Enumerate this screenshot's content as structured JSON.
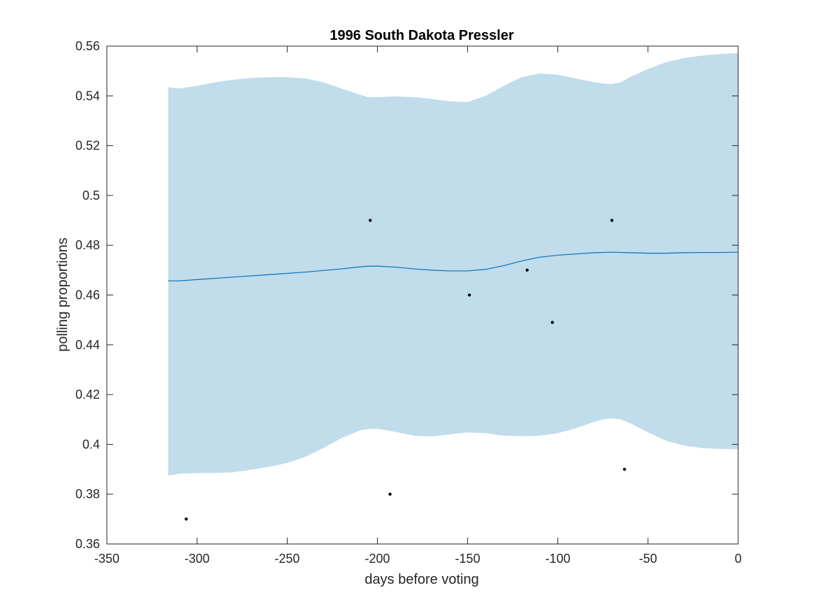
{
  "chart_data": {
    "type": "line",
    "title": "1996 South Dakota Pressler",
    "xlabel": "days before voting",
    "ylabel": "polling proportions",
    "xlim": [
      -350,
      0
    ],
    "ylim": [
      0.36,
      0.56
    ],
    "xticks": [
      -350,
      -300,
      -250,
      -200,
      -150,
      -100,
      -50,
      0
    ],
    "xtick_labels": [
      "-350",
      "-300",
      "-250",
      "-200",
      "-150",
      "-100",
      "-50",
      "0"
    ],
    "yticks": [
      0.36,
      0.38,
      0.4,
      0.42,
      0.44,
      0.46,
      0.48,
      0.5,
      0.52,
      0.54,
      0.56
    ],
    "ytick_labels": [
      "0.36",
      "0.38",
      "0.4",
      "0.42",
      "0.44",
      "0.46",
      "0.48",
      "0.5",
      "0.52",
      "0.54",
      "0.56"
    ],
    "grid": false,
    "colors": {
      "band": "#c1dcea",
      "line": "#0072bd",
      "points": "#000000",
      "axis": "#262626"
    },
    "band": {
      "x": [
        -316,
        -310,
        -300,
        -290,
        -280,
        -270,
        -260,
        -250,
        -240,
        -230,
        -220,
        -210,
        -205,
        -200,
        -190,
        -180,
        -170,
        -160,
        -150,
        -140,
        -130,
        -120,
        -110,
        -100,
        -90,
        -80,
        -75,
        -70,
        -65,
        -60,
        -50,
        -40,
        -30,
        -20,
        -10,
        0
      ],
      "upper": [
        0.5435,
        0.543,
        0.544,
        0.5455,
        0.5465,
        0.5472,
        0.5475,
        0.5475,
        0.547,
        0.5455,
        0.543,
        0.5405,
        0.5395,
        0.5395,
        0.5398,
        0.5395,
        0.5388,
        0.5378,
        0.5375,
        0.54,
        0.544,
        0.5475,
        0.549,
        0.5485,
        0.547,
        0.5455,
        0.545,
        0.5448,
        0.5455,
        0.5475,
        0.5508,
        0.5535,
        0.5552,
        0.5562,
        0.5568,
        0.5572
      ],
      "lower": [
        0.3875,
        0.3882,
        0.3885,
        0.3885,
        0.3888,
        0.3898,
        0.391,
        0.3925,
        0.395,
        0.3985,
        0.4025,
        0.4055,
        0.4062,
        0.4063,
        0.405,
        0.4035,
        0.4032,
        0.404,
        0.4048,
        0.4045,
        0.4035,
        0.4033,
        0.4035,
        0.4045,
        0.4065,
        0.409,
        0.41,
        0.4105,
        0.41,
        0.4085,
        0.4048,
        0.4015,
        0.3995,
        0.3985,
        0.3982,
        0.398
      ]
    },
    "series": [
      {
        "x": [
          -316,
          -310,
          -300,
          -280,
          -260,
          -240,
          -220,
          -210,
          -205,
          -200,
          -190,
          -180,
          -170,
          -160,
          -150,
          -140,
          -130,
          -120,
          -110,
          -100,
          -90,
          -80,
          -70,
          -60,
          -50,
          -40,
          -30,
          -20,
          -10,
          0
        ],
        "values": [
          0.4657,
          0.4657,
          0.4662,
          0.4672,
          0.4682,
          0.4692,
          0.4705,
          0.4713,
          0.4716,
          0.4716,
          0.4712,
          0.4705,
          0.47,
          0.4697,
          0.4697,
          0.4703,
          0.4718,
          0.4737,
          0.4752,
          0.476,
          0.4765,
          0.477,
          0.4772,
          0.477,
          0.4768,
          0.4768,
          0.477,
          0.4771,
          0.4771,
          0.4772
        ]
      }
    ],
    "points": [
      {
        "x": -306,
        "y": 0.37
      },
      {
        "x": -204,
        "y": 0.49
      },
      {
        "x": -193,
        "y": 0.38
      },
      {
        "x": -149,
        "y": 0.46
      },
      {
        "x": -117,
        "y": 0.47
      },
      {
        "x": -103,
        "y": 0.449
      },
      {
        "x": -70,
        "y": 0.49
      },
      {
        "x": -63,
        "y": 0.39
      }
    ]
  }
}
